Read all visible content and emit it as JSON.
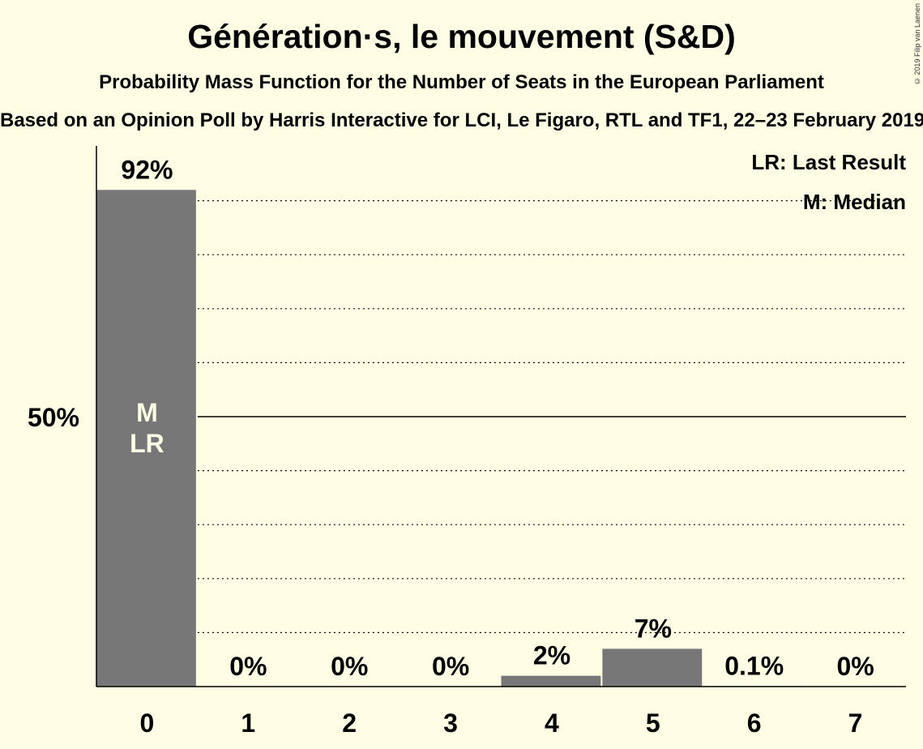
{
  "title": "Génération·s, le mouvement (S&D)",
  "subtitle": "Probability Mass Function for the Number of Seats in the European Parliament",
  "source": "Based on an Opinion Poll by Harris Interactive for LCI, Le Figaro, RTL and TF1, 22–23 February 2019",
  "copyright": "© 2019 Filip van Laenen",
  "legend": {
    "last_result": "LR: Last Result",
    "median": "M: Median"
  },
  "colors": {
    "background": "#FFFEE5",
    "bar": "#777777"
  },
  "chart_data": {
    "type": "bar",
    "title": "Génération·s, le mouvement (S&D)",
    "subtitle": "Probability Mass Function for the Number of Seats in the European Parliament",
    "categories": [
      "0",
      "1",
      "2",
      "3",
      "4",
      "5",
      "6",
      "7"
    ],
    "values": [
      92,
      0,
      0,
      0,
      2,
      7,
      0.1,
      0
    ],
    "labels": [
      "92%",
      "0%",
      "0%",
      "0%",
      "2%",
      "7%",
      "0.1%",
      "0%"
    ],
    "ylim": [
      0,
      100
    ],
    "y_tick_label": "50%",
    "y_tick_value": 50,
    "gridlines": [
      10,
      20,
      30,
      40,
      60,
      70,
      80,
      90
    ],
    "median_category": "0",
    "last_result_category": "0",
    "bar_markers": [
      "M",
      "LR"
    ],
    "legend_placement": "top-right"
  }
}
